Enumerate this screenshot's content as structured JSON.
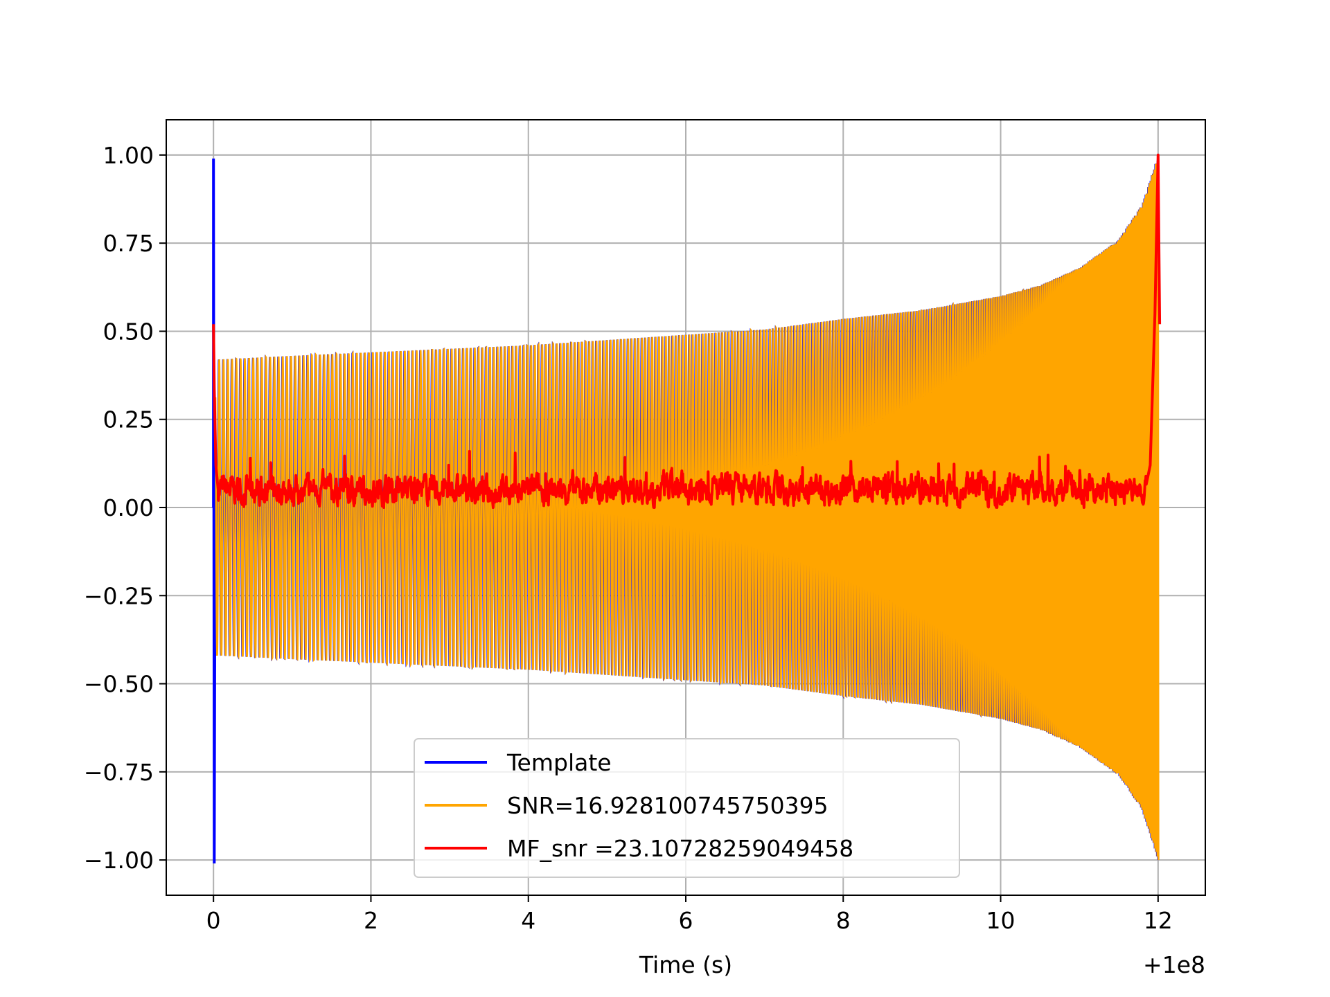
{
  "chart_data": {
    "type": "line",
    "title": "",
    "xlabel": "Time (s)",
    "ylabel": "",
    "x_offset_label": "+1e8",
    "xlim": [
      -0.6,
      12.6
    ],
    "ylim": [
      -1.1,
      1.1
    ],
    "x_ticks": [
      0,
      2,
      4,
      6,
      8,
      10,
      12
    ],
    "x_tick_labels": [
      "0",
      "2",
      "4",
      "6",
      "8",
      "10",
      "12"
    ],
    "y_ticks": [
      1.0,
      0.75,
      0.5,
      0.25,
      0.0,
      -0.25,
      -0.5,
      -0.75,
      -1.0
    ],
    "y_tick_labels": [
      "1.00",
      "0.75",
      "0.50",
      "0.25",
      "0.00",
      "−0.25",
      "−0.50",
      "−0.75",
      "−1.00"
    ],
    "grid": true,
    "legend_position": "lower-center",
    "series": [
      {
        "name": "Template",
        "color": "#0000ff",
        "description": "chirp waveform, amplitude rising from ~0.42 at t=0.1 to ~1.0 at t=12, with a spike to ±1.0 at t=0"
      },
      {
        "name": "SNR=16.928100745750395",
        "color": "#ffa500",
        "description": "chirp waveform overlaying template"
      },
      {
        "name": "MF_snr =23.10728259049458",
        "color": "#ff0000",
        "description": "matched filter output, noisy near 0.05, peaks at t=0 (~0.52) and t=12 (~1.0)"
      }
    ],
    "envelope_points": {
      "t": [
        0.1,
        1,
        2,
        3,
        4,
        5,
        6,
        7,
        8,
        9,
        10,
        10.5,
        11,
        11.5,
        11.8,
        12.0
      ],
      "amp": [
        0.42,
        0.43,
        0.44,
        0.45,
        0.46,
        0.475,
        0.49,
        0.505,
        0.535,
        0.56,
        0.6,
        0.63,
        0.68,
        0.76,
        0.86,
        1.0
      ]
    }
  }
}
